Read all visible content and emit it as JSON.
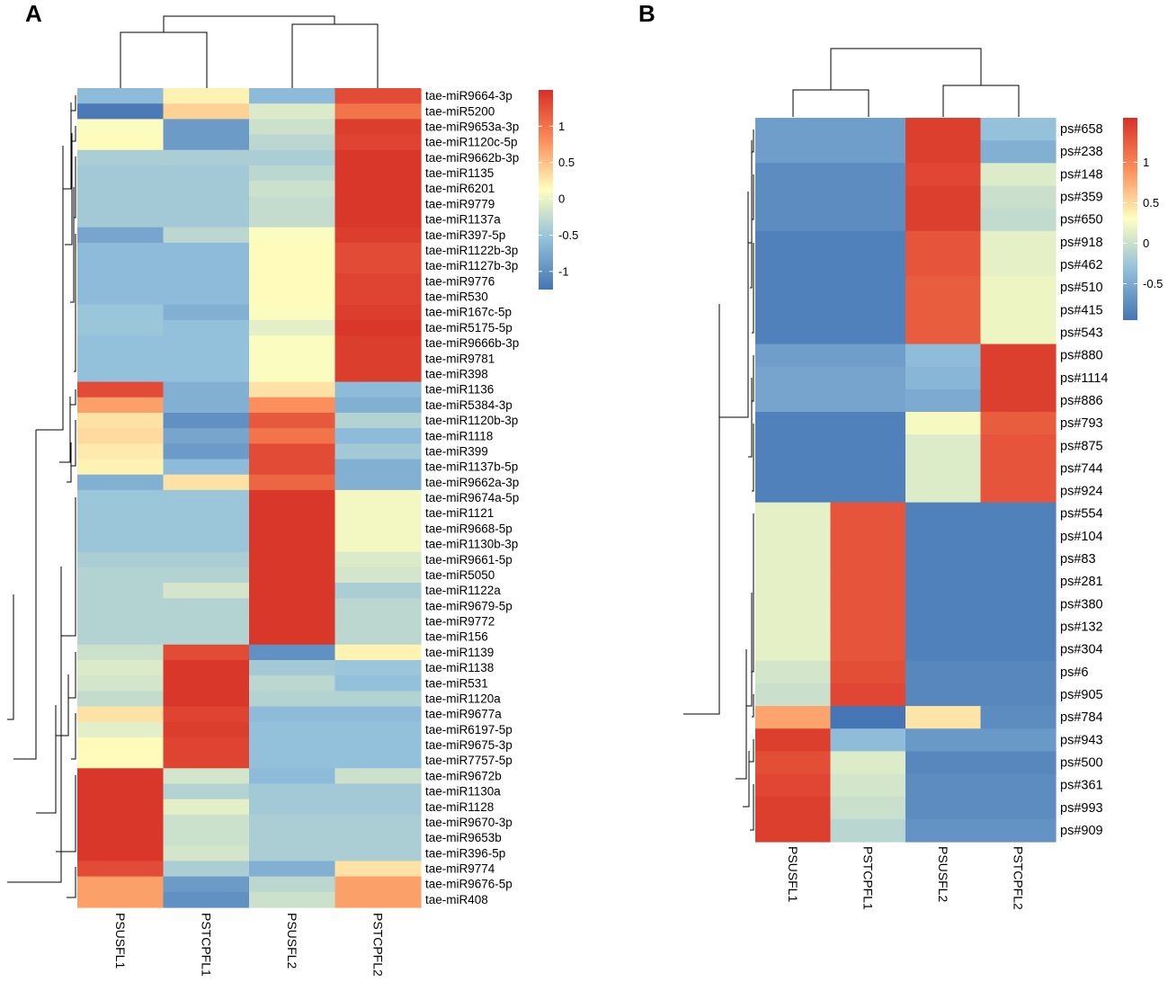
{
  "chart_data": [
    {
      "type": "heatmap",
      "panel": "A",
      "title": "",
      "columns": [
        "PSUSFL1",
        "PSTCPFL1",
        "PSUSFL2",
        "PSTCPFL2"
      ],
      "rows": [
        "tae-miR9664-3p",
        "tae-miR5200",
        "tae-miR9653a-3p",
        "tae-miR1120c-5p",
        "tae-miR9662b-3p",
        "tae-miR1135",
        "tae-miR6201",
        "tae-miR9779",
        "tae-miR1137a",
        "tae-miR397-5p",
        "tae-miR1122b-3p",
        "tae-miR1127b-3p",
        "tae-miR9776",
        "tae-miR530",
        "tae-miR167c-5p",
        "tae-miR5175-5p",
        "tae-miR9666b-3p",
        "tae-miR9781",
        "tae-miR398",
        "tae-miR1136",
        "tae-miR5384-3p",
        "tae-miR1120b-3p",
        "tae-miR1118",
        "tae-miR399",
        "tae-miR1137b-5p",
        "tae-miR9662a-3p",
        "tae-miR9674a-5p",
        "tae-miR1121",
        "tae-miR9668-5p",
        "tae-miR1130b-3p",
        "tae-miR9661-5p",
        "tae-miR5050",
        "tae-miR1122a",
        "tae-miR9679-5p",
        "tae-miR9772",
        "tae-miR156",
        "tae-miR1139",
        "tae-miR1138",
        "tae-miR531",
        "tae-miR1120a",
        "tae-miR9677a",
        "tae-miR6197-5p",
        "tae-miR9675-3p",
        "tae-miR7757-5p",
        "tae-miR9672b",
        "tae-miR1130a",
        "tae-miR1128",
        "tae-miR9670-3p",
        "tae-miR9653b",
        "tae-miR396-5p",
        "tae-miR9774",
        "tae-miR9676-5p",
        "tae-miR408"
      ],
      "values": [
        [
          -0.6,
          0.2,
          -0.6,
          1.3
        ],
        [
          -1.2,
          0.4,
          -0.1,
          1.0
        ],
        [
          0.1,
          -0.9,
          -0.2,
          1.4
        ],
        [
          0.15,
          -0.9,
          -0.3,
          1.35
        ],
        [
          -0.4,
          -0.4,
          -0.4,
          1.45
        ],
        [
          -0.45,
          -0.45,
          -0.3,
          1.45
        ],
        [
          -0.45,
          -0.45,
          -0.2,
          1.45
        ],
        [
          -0.45,
          -0.45,
          -0.25,
          1.45
        ],
        [
          -0.45,
          -0.45,
          -0.25,
          1.45
        ],
        [
          -0.8,
          -0.3,
          0.1,
          1.4
        ],
        [
          -0.6,
          -0.6,
          0.15,
          1.3
        ],
        [
          -0.6,
          -0.6,
          0.15,
          1.3
        ],
        [
          -0.6,
          -0.6,
          0.15,
          1.35
        ],
        [
          -0.6,
          -0.6,
          0.15,
          1.35
        ],
        [
          -0.5,
          -0.7,
          0.1,
          1.4
        ],
        [
          -0.5,
          -0.55,
          -0.05,
          1.45
        ],
        [
          -0.55,
          -0.55,
          0.1,
          1.4
        ],
        [
          -0.55,
          -0.55,
          0.1,
          1.4
        ],
        [
          -0.55,
          -0.55,
          0.1,
          1.4
        ],
        [
          1.3,
          -0.7,
          0.3,
          -0.6
        ],
        [
          0.7,
          -0.7,
          0.8,
          -0.7
        ],
        [
          0.3,
          -1.0,
          1.2,
          -0.35
        ],
        [
          0.35,
          -0.8,
          1.0,
          -0.6
        ],
        [
          0.25,
          -0.9,
          1.3,
          -0.45
        ],
        [
          0.2,
          -0.6,
          1.3,
          -0.7
        ],
        [
          -0.7,
          0.3,
          1.1,
          -0.7
        ],
        [
          -0.5,
          -0.5,
          1.45,
          0.05
        ],
        [
          -0.5,
          -0.5,
          1.45,
          0.05
        ],
        [
          -0.5,
          -0.5,
          1.45,
          0.05
        ],
        [
          -0.5,
          -0.5,
          1.45,
          0.05
        ],
        [
          -0.4,
          -0.4,
          1.45,
          -0.1
        ],
        [
          -0.35,
          -0.35,
          1.45,
          -0.15
        ],
        [
          -0.35,
          -0.15,
          1.45,
          -0.4
        ],
        [
          -0.35,
          -0.35,
          1.45,
          -0.3
        ],
        [
          -0.35,
          -0.35,
          1.45,
          -0.3
        ],
        [
          -0.35,
          -0.35,
          1.45,
          -0.3
        ],
        [
          -0.2,
          1.3,
          -1.0,
          0.2
        ],
        [
          -0.1,
          1.45,
          -0.45,
          -0.5
        ],
        [
          -0.15,
          1.45,
          -0.3,
          -0.55
        ],
        [
          -0.25,
          1.45,
          -0.35,
          -0.35
        ],
        [
          0.3,
          1.35,
          -0.6,
          -0.6
        ],
        [
          -0.05,
          1.4,
          -0.55,
          -0.55
        ],
        [
          0.15,
          1.35,
          -0.55,
          -0.55
        ],
        [
          0.15,
          1.35,
          -0.55,
          -0.55
        ],
        [
          1.45,
          -0.15,
          -0.6,
          -0.2
        ],
        [
          1.45,
          -0.35,
          -0.45,
          -0.45
        ],
        [
          1.45,
          -0.05,
          -0.45,
          -0.45
        ],
        [
          1.45,
          -0.2,
          -0.4,
          -0.4
        ],
        [
          1.45,
          -0.2,
          -0.4,
          -0.4
        ],
        [
          1.45,
          -0.15,
          -0.4,
          -0.4
        ],
        [
          1.3,
          -0.4,
          -0.7,
          0.3
        ],
        [
          0.7,
          -0.9,
          -0.3,
          0.7
        ],
        [
          0.7,
          -1.0,
          -0.2,
          0.7
        ]
      ],
      "color_scale": {
        "ticks": [
          "1",
          "0.5",
          "0",
          "-0.5",
          "-1"
        ],
        "range": [
          -1.25,
          1.5
        ],
        "colors": [
          "#4575b4",
          "#91bfdb",
          "#ffffbf",
          "#fc8d59",
          "#d73027"
        ]
      }
    },
    {
      "type": "heatmap",
      "panel": "B",
      "title": "",
      "columns": [
        "PSUSFL1",
        "PSTCPFL1",
        "PSUSFL2",
        "PSTCPFL2"
      ],
      "rows": [
        "ps#658",
        "ps#238",
        "ps#148",
        "ps#359",
        "ps#650",
        "ps#918",
        "ps#462",
        "ps#510",
        "ps#415",
        "ps#543",
        "ps#880",
        "ps#1114",
        "ps#886",
        "ps#793",
        "ps#875",
        "ps#744",
        "ps#924",
        "ps#554",
        "ps#104",
        "ps#83",
        "ps#281",
        "ps#380",
        "ps#132",
        "ps#304",
        "ps#6",
        "ps#905",
        "ps#784",
        "ps#943",
        "ps#500",
        "ps#361",
        "ps#993",
        "ps#909"
      ],
      "values": [
        [
          -0.6,
          -0.6,
          1.45,
          -0.3
        ],
        [
          -0.6,
          -0.6,
          1.45,
          -0.45
        ],
        [
          -0.75,
          -0.75,
          1.4,
          0.1
        ],
        [
          -0.75,
          -0.75,
          1.45,
          0.0
        ],
        [
          -0.75,
          -0.75,
          1.45,
          -0.05
        ],
        [
          -0.85,
          -0.85,
          1.3,
          0.15
        ],
        [
          -0.85,
          -0.85,
          1.3,
          0.15
        ],
        [
          -0.85,
          -0.85,
          1.25,
          0.2
        ],
        [
          -0.85,
          -0.85,
          1.25,
          0.2
        ],
        [
          -0.85,
          -0.85,
          1.25,
          0.2
        ],
        [
          -0.6,
          -0.6,
          -0.35,
          1.45
        ],
        [
          -0.55,
          -0.55,
          -0.4,
          1.45
        ],
        [
          -0.55,
          -0.55,
          -0.5,
          1.45
        ],
        [
          -0.85,
          -0.85,
          0.25,
          1.25
        ],
        [
          -0.85,
          -0.85,
          0.1,
          1.3
        ],
        [
          -0.85,
          -0.85,
          0.1,
          1.3
        ],
        [
          -0.85,
          -0.85,
          0.1,
          1.3
        ],
        [
          0.15,
          1.3,
          -0.85,
          -0.85
        ],
        [
          0.15,
          1.3,
          -0.85,
          -0.85
        ],
        [
          0.15,
          1.3,
          -0.85,
          -0.85
        ],
        [
          0.15,
          1.3,
          -0.85,
          -0.85
        ],
        [
          0.15,
          1.3,
          -0.85,
          -0.85
        ],
        [
          0.15,
          1.3,
          -0.85,
          -0.85
        ],
        [
          0.15,
          1.3,
          -0.85,
          -0.85
        ],
        [
          0.05,
          1.35,
          -0.8,
          -0.8
        ],
        [
          0.0,
          1.4,
          -0.8,
          -0.8
        ],
        [
          0.8,
          -1.1,
          0.45,
          -0.75
        ],
        [
          1.45,
          -0.35,
          -0.65,
          -0.65
        ],
        [
          1.35,
          0.1,
          -0.8,
          -0.8
        ],
        [
          1.4,
          0.05,
          -0.75,
          -0.75
        ],
        [
          1.45,
          0.0,
          -0.75,
          -0.75
        ],
        [
          1.45,
          -0.1,
          -0.7,
          -0.7
        ]
      ],
      "color_scale": {
        "ticks": [
          "1",
          "0.5",
          "0",
          "-0.5"
        ],
        "range": [
          -0.95,
          1.55
        ],
        "colors": [
          "#4575b4",
          "#91bfdb",
          "#ffffbf",
          "#fc8d59",
          "#d73027"
        ]
      }
    }
  ],
  "panels": {
    "a": "A",
    "b": "B"
  }
}
